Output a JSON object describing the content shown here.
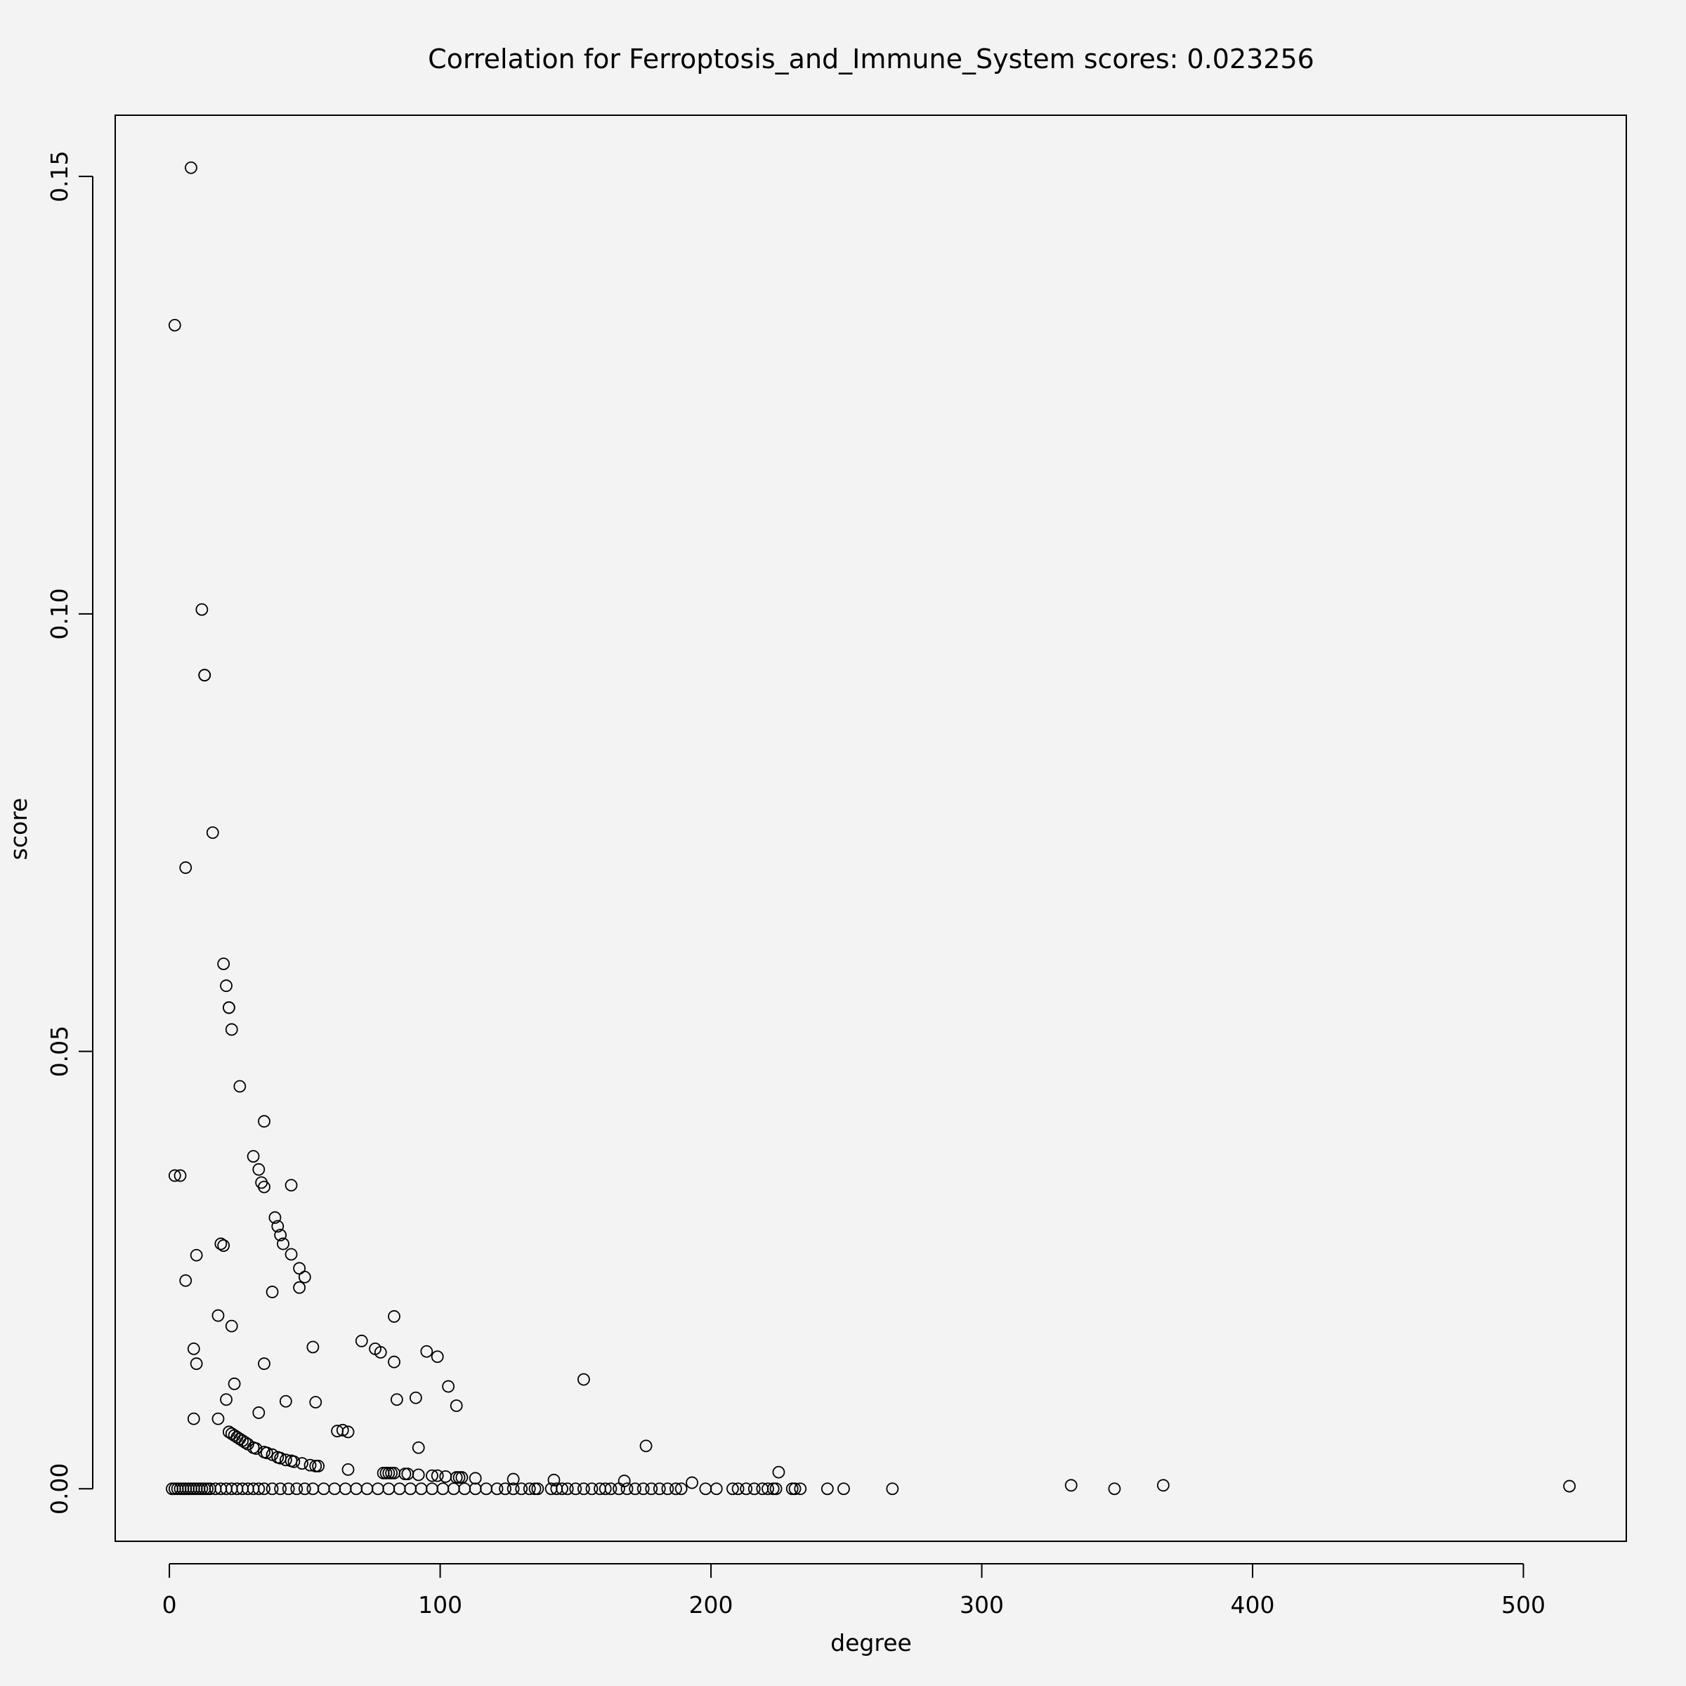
{
  "chart_data": {
    "type": "scatter",
    "title": "Correlation for Ferroptosis_and_Immune_System scores: 0.023256",
    "xlabel": "degree",
    "ylabel": "score",
    "xlim": [
      -20,
      538
    ],
    "ylim": [
      -0.006,
      0.157
    ],
    "xticks": [
      0,
      100,
      200,
      300,
      400,
      500
    ],
    "xtick_labels": [
      "0",
      "100",
      "200",
      "300",
      "400",
      "500"
    ],
    "yticks": [
      0.0,
      0.05,
      0.1,
      0.15
    ],
    "ytick_labels": [
      "0.00",
      "0.05",
      "0.10",
      "0.15"
    ],
    "grid": false,
    "legend": "none",
    "point_style": "open-circle",
    "colors": {
      "background": "#f3f3f3",
      "points": "#000000"
    },
    "points": [
      [
        2,
        0.133
      ],
      [
        8,
        0.151
      ],
      [
        12,
        0.1005
      ],
      [
        13,
        0.093
      ],
      [
        13,
        0.093
      ],
      [
        16,
        0.075
      ],
      [
        6,
        0.071
      ],
      [
        20,
        0.06
      ],
      [
        21,
        0.0575
      ],
      [
        22,
        0.055
      ],
      [
        22,
        0.055
      ],
      [
        23,
        0.0525
      ],
      [
        26,
        0.046
      ],
      [
        35,
        0.042
      ],
      [
        31,
        0.038
      ],
      [
        33,
        0.0365
      ],
      [
        34,
        0.035
      ],
      [
        35,
        0.0345
      ],
      [
        45,
        0.0347
      ],
      [
        2,
        0.0358
      ],
      [
        4,
        0.0358
      ],
      [
        39,
        0.031
      ],
      [
        40,
        0.03
      ],
      [
        41,
        0.029
      ],
      [
        42,
        0.028
      ],
      [
        19,
        0.028
      ],
      [
        20,
        0.0278
      ],
      [
        10,
        0.0267
      ],
      [
        45,
        0.0268
      ],
      [
        48,
        0.0252
      ],
      [
        50,
        0.0242
      ],
      [
        6,
        0.0238
      ],
      [
        48,
        0.023
      ],
      [
        38,
        0.0225
      ],
      [
        18,
        0.0198
      ],
      [
        83,
        0.0197
      ],
      [
        23,
        0.0186
      ],
      [
        71,
        0.0169
      ],
      [
        53,
        0.0162
      ],
      [
        76,
        0.016
      ],
      [
        78,
        0.0156
      ],
      [
        95,
        0.0157
      ],
      [
        99,
        0.0151
      ],
      [
        9,
        0.016
      ],
      [
        10,
        0.0143
      ],
      [
        35,
        0.0143
      ],
      [
        83,
        0.0145
      ],
      [
        153,
        0.0125
      ],
      [
        24,
        0.012
      ],
      [
        103,
        0.0117
      ],
      [
        21,
        0.0102
      ],
      [
        43,
        0.01
      ],
      [
        54,
        0.0099
      ],
      [
        84,
        0.0102
      ],
      [
        91,
        0.0104
      ],
      [
        106,
        0.0095
      ],
      [
        33,
        0.0087
      ],
      [
        9,
        0.008
      ],
      [
        18,
        0.008
      ],
      [
        62,
        0.0066
      ],
      [
        64,
        0.0067
      ],
      [
        66,
        0.0065
      ],
      [
        92,
        0.0047
      ],
      [
        176,
        0.0049
      ],
      [
        22,
        0.0065
      ],
      [
        23,
        0.0063
      ],
      [
        24,
        0.0061
      ],
      [
        25,
        0.0059
      ],
      [
        26,
        0.0057
      ],
      [
        27,
        0.0055
      ],
      [
        28,
        0.0053
      ],
      [
        29,
        0.0051
      ],
      [
        31,
        0.0047
      ],
      [
        32,
        0.0046
      ],
      [
        35,
        0.0042
      ],
      [
        36,
        0.0041
      ],
      [
        38,
        0.0039
      ],
      [
        40,
        0.0036
      ],
      [
        41,
        0.0035
      ],
      [
        43,
        0.0033
      ],
      [
        45,
        0.0032
      ],
      [
        46,
        0.0031
      ],
      [
        49,
        0.0029
      ],
      [
        52,
        0.0027
      ],
      [
        54,
        0.0026
      ],
      [
        55,
        0.0026
      ],
      [
        66,
        0.0022
      ],
      [
        225,
        0.0019
      ],
      [
        79,
        0.0018
      ],
      [
        80,
        0.0018
      ],
      [
        81,
        0.0018
      ],
      [
        82,
        0.0018
      ],
      [
        83,
        0.0018
      ],
      [
        87,
        0.0017
      ],
      [
        88,
        0.0017
      ],
      [
        92,
        0.0016
      ],
      [
        97,
        0.0015
      ],
      [
        99,
        0.0015
      ],
      [
        102,
        0.0014
      ],
      [
        106,
        0.0013
      ],
      [
        107,
        0.0013
      ],
      [
        108,
        0.0013
      ],
      [
        113,
        0.0012
      ],
      [
        127,
        0.0011
      ],
      [
        142,
        0.001
      ],
      [
        168,
        0.0009
      ],
      [
        193,
        0.0007
      ],
      [
        333,
        0.0004
      ],
      [
        367,
        0.0004
      ],
      [
        517,
        0.0003
      ],
      [
        1,
        0
      ],
      [
        2,
        0
      ],
      [
        3,
        0
      ],
      [
        4,
        0
      ],
      [
        5,
        0
      ],
      [
        6,
        0
      ],
      [
        7,
        0
      ],
      [
        8,
        0
      ],
      [
        9,
        0
      ],
      [
        10,
        0
      ],
      [
        11,
        0
      ],
      [
        12,
        0
      ],
      [
        13,
        0
      ],
      [
        14,
        0
      ],
      [
        15,
        0
      ],
      [
        17,
        0
      ],
      [
        19,
        0
      ],
      [
        21,
        0
      ],
      [
        23,
        0
      ],
      [
        25,
        0
      ],
      [
        27,
        0
      ],
      [
        29,
        0
      ],
      [
        31,
        0
      ],
      [
        33,
        0
      ],
      [
        35,
        0
      ],
      [
        38,
        0
      ],
      [
        41,
        0
      ],
      [
        44,
        0
      ],
      [
        47,
        0
      ],
      [
        50,
        0
      ],
      [
        53,
        0
      ],
      [
        57,
        0
      ],
      [
        61,
        0
      ],
      [
        65,
        0
      ],
      [
        69,
        0
      ],
      [
        73,
        0
      ],
      [
        77,
        0
      ],
      [
        81,
        0
      ],
      [
        85,
        0
      ],
      [
        89,
        0
      ],
      [
        93,
        0
      ],
      [
        97,
        0
      ],
      [
        101,
        0
      ],
      [
        105,
        0
      ],
      [
        109,
        0
      ],
      [
        113,
        0
      ],
      [
        117,
        0
      ],
      [
        121,
        0
      ],
      [
        124,
        0
      ],
      [
        127,
        0
      ],
      [
        130,
        0
      ],
      [
        133,
        0
      ],
      [
        135,
        0
      ],
      [
        136,
        0
      ],
      [
        141,
        0
      ],
      [
        143,
        0
      ],
      [
        145,
        0
      ],
      [
        147,
        0
      ],
      [
        150,
        0
      ],
      [
        153,
        0
      ],
      [
        156,
        0
      ],
      [
        159,
        0
      ],
      [
        161,
        0
      ],
      [
        163,
        0
      ],
      [
        166,
        0
      ],
      [
        169,
        0
      ],
      [
        172,
        0
      ],
      [
        175,
        0
      ],
      [
        178,
        0
      ],
      [
        181,
        0
      ],
      [
        184,
        0
      ],
      [
        187,
        0
      ],
      [
        189,
        0
      ],
      [
        198,
        0
      ],
      [
        202,
        0
      ],
      [
        208,
        0
      ],
      [
        210,
        0
      ],
      [
        213,
        0
      ],
      [
        216,
        0
      ],
      [
        219,
        0
      ],
      [
        221,
        0
      ],
      [
        223,
        0
      ],
      [
        224,
        0
      ],
      [
        230,
        0
      ],
      [
        231,
        0
      ],
      [
        233,
        0
      ],
      [
        243,
        0
      ],
      [
        249,
        0
      ],
      [
        267,
        0
      ],
      [
        349,
        0
      ]
    ]
  }
}
